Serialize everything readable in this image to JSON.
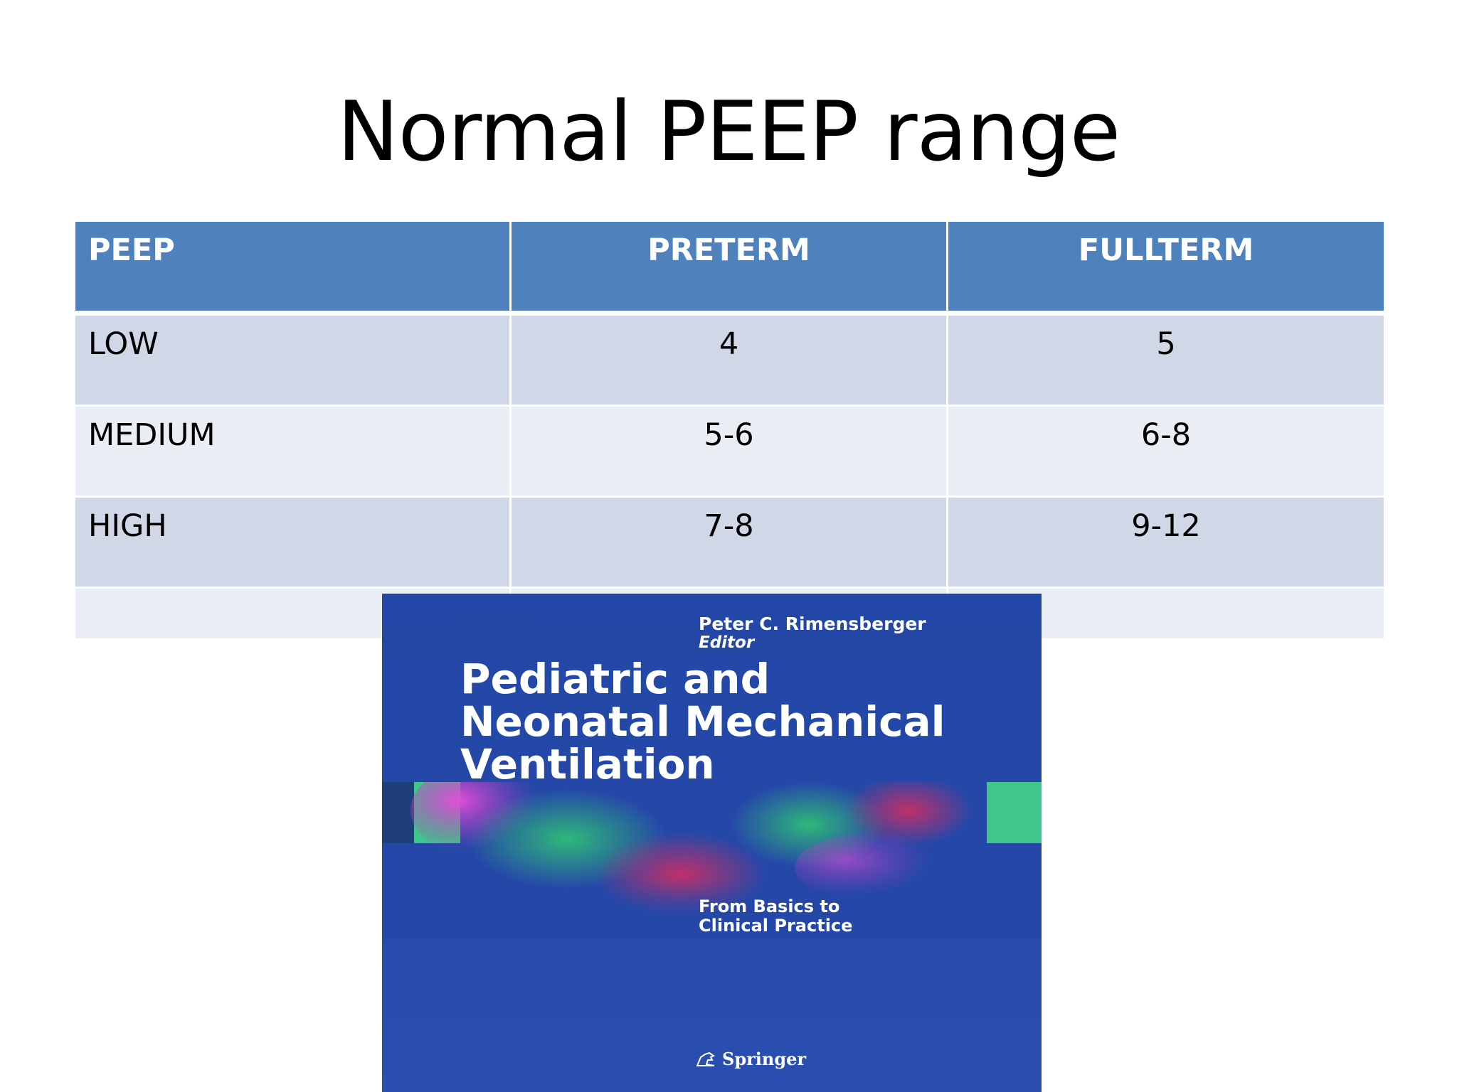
{
  "slide": {
    "title": "Normal PEEP range"
  },
  "table": {
    "headers": [
      "PEEP",
      "PRETERM",
      "FULLTERM"
    ],
    "rows": [
      {
        "label": "LOW",
        "preterm": "4",
        "fullterm": "5"
      },
      {
        "label": "MEDIUM",
        "preterm": "5-6",
        "fullterm": "6-8"
      },
      {
        "label": "HIGH",
        "preterm": "7-8",
        "fullterm": "9-12"
      }
    ]
  },
  "book": {
    "editor_name": "Peter C. Rimensberger",
    "editor_role": "Editor",
    "title_lines": [
      "Pediatric and",
      "Neonatal Mechanical",
      "Ventilation"
    ],
    "subtitle_lines": [
      "From Basics to",
      "Clinical Practice"
    ],
    "publisher": "Springer",
    "publisher_icon": "springer-horse-icon",
    "colors": {
      "cover_background": "#2548a8",
      "band_green": "#3fc68a",
      "art_magenta": "#d23ccf"
    }
  },
  "colors": {
    "header_fill": "#4f81bd",
    "row_odd": "#d0d8e8",
    "row_even": "#e9edf4"
  }
}
